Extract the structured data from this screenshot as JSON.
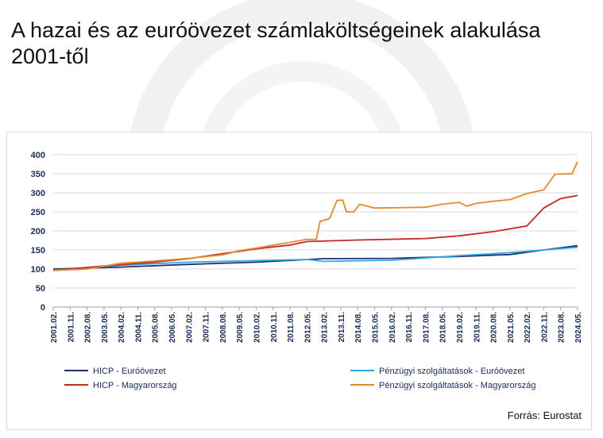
{
  "page": {
    "title": "A hazai és az euróövezet számlaköltségeinek alakulása 2001-től",
    "source": "Forrás: Eurostat"
  },
  "colors": {
    "hicp_ez": "#1f2f6e",
    "hicp_hu": "#c62828",
    "fin_ez": "#29a9e0",
    "fin_hu": "#e08a2c",
    "grid": "#d9d9d9",
    "watermark": "#ececec"
  },
  "chart_data": {
    "type": "line",
    "x_tick_labels": [
      "2001.02.",
      "2001.11.",
      "2002.08.",
      "2003.05.",
      "2004.02.",
      "2004.11.",
      "2005.08.",
      "2006.05.",
      "2007.02.",
      "2007.11.",
      "2008.08.",
      "2009.05.",
      "2010.02.",
      "2010.11.",
      "2011.08.",
      "2012.05.",
      "2013.02.",
      "2013.11.",
      "2014.08.",
      "2015.05.",
      "2016.02.",
      "2016.11.",
      "2017.08.",
      "2018.05.",
      "2019.02.",
      "2019.11.",
      "2020.08.",
      "2021.05.",
      "2022.02.",
      "2022.11.",
      "2023.08.",
      "2024.05."
    ],
    "ylim": [
      0,
      400
    ],
    "y_ticks": [
      0,
      50,
      100,
      150,
      200,
      250,
      300,
      350,
      400
    ],
    "grid": "horizontal",
    "legend_position": "bottom",
    "series": [
      {
        "name": "HICP - Euróövezet",
        "color_key": "hicp_ez",
        "points": [
          [
            "2001.02.",
            100
          ],
          [
            "2004.02.",
            105
          ],
          [
            "2007.02.",
            112
          ],
          [
            "2010.02.",
            118
          ],
          [
            "2013.02.",
            127
          ],
          [
            "2016.02.",
            128
          ],
          [
            "2019.02.",
            133
          ],
          [
            "2021.05.",
            138
          ],
          [
            "2022.11.",
            150
          ],
          [
            "2024.05.",
            161
          ]
        ]
      },
      {
        "name": "Pénzügyi szolgáltatások - Euróövezet",
        "color_key": "fin_ez",
        "points": [
          [
            "2001.02.",
            97
          ],
          [
            "2004.02.",
            110
          ],
          [
            "2007.02.",
            118
          ],
          [
            "2010.02.",
            122
          ],
          [
            "2012.05.",
            125
          ],
          [
            "2013.02.",
            120
          ],
          [
            "2016.02.",
            123
          ],
          [
            "2019.02.",
            135
          ],
          [
            "2021.05.",
            143
          ],
          [
            "2022.11.",
            150
          ],
          [
            "2024.05.",
            157
          ]
        ]
      },
      {
        "name": "HICP - Magyarország",
        "color_key": "hicp_hu",
        "points": [
          [
            "2001.02.",
            96
          ],
          [
            "2003.05.",
            108
          ],
          [
            "2005.08.",
            118
          ],
          [
            "2007.02.",
            127
          ],
          [
            "2008.08.",
            140
          ],
          [
            "2010.02.",
            153
          ],
          [
            "2011.08.",
            163
          ],
          [
            "2012.05.",
            172
          ],
          [
            "2014.08.",
            176
          ],
          [
            "2017.08.",
            180
          ],
          [
            "2019.02.",
            187
          ],
          [
            "2020.08.",
            198
          ],
          [
            "2022.02.",
            213
          ],
          [
            "2022.11.",
            260
          ],
          [
            "2023.08.",
            285
          ],
          [
            "2024.05.",
            293
          ]
        ]
      },
      {
        "name": "Pénzügyi szolgáltatások - Magyarország",
        "color_key": "fin_hu",
        "points": [
          [
            "2001.02.",
            96
          ],
          [
            "2002.08.",
            100
          ],
          [
            "2004.02.",
            115
          ],
          [
            "2005.08.",
            121
          ],
          [
            "2007.02.",
            128
          ],
          [
            "2008.08.",
            137
          ],
          [
            "2009.05.",
            148
          ],
          [
            "2010.02.",
            155
          ],
          [
            "2011.08.",
            170
          ],
          [
            "2012.05.",
            178
          ],
          [
            "2012.10.",
            178
          ],
          [
            "2012.12.",
            225
          ],
          [
            "2013.05.",
            232
          ],
          [
            "2013.09.",
            280
          ],
          [
            "2013.12.",
            281
          ],
          [
            "2014.02.",
            250
          ],
          [
            "2014.06.",
            250
          ],
          [
            "2014.09.",
            270
          ],
          [
            "2015.05.",
            260
          ],
          [
            "2017.08.",
            262
          ],
          [
            "2018.05.",
            270
          ],
          [
            "2019.02.",
            275
          ],
          [
            "2019.06.",
            265
          ],
          [
            "2019.11.",
            272
          ],
          [
            "2020.08.",
            278
          ],
          [
            "2021.05.",
            282
          ],
          [
            "2022.02.",
            298
          ],
          [
            "2022.11.",
            308
          ],
          [
            "2023.05.",
            349
          ],
          [
            "2024.02.",
            350
          ],
          [
            "2024.05.",
            382
          ]
        ]
      }
    ]
  }
}
